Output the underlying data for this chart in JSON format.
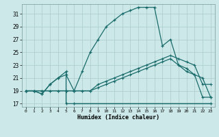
{
  "bg_color": "#cce8e8",
  "grid_color": "#aacccc",
  "line_color": "#1a6b6b",
  "xlabel": "Humidex (Indice chaleur)",
  "xlim": [
    -0.5,
    23.5
  ],
  "ylim": [
    16.5,
    32.5
  ],
  "xticks": [
    0,
    1,
    2,
    3,
    4,
    5,
    6,
    7,
    8,
    9,
    10,
    11,
    12,
    13,
    14,
    15,
    16,
    17,
    18,
    19,
    20,
    21,
    22,
    23
  ],
  "yticks": [
    17,
    19,
    21,
    23,
    25,
    27,
    29,
    31
  ],
  "curve_main_x": [
    0,
    1,
    2,
    3,
    4,
    5,
    6,
    7,
    8,
    9,
    10,
    11,
    12,
    13,
    14,
    15,
    16,
    17,
    18,
    19,
    20,
    21,
    22,
    23
  ],
  "curve_main_y": [
    19,
    19,
    18.5,
    20,
    21,
    21.5,
    19,
    22,
    25,
    27,
    29,
    30,
    31,
    31.5,
    32,
    32,
    32,
    26,
    27,
    23,
    22,
    21.5,
    21,
    18
  ],
  "curve_bot_x": [
    0,
    1,
    2,
    3,
    4,
    5,
    5,
    6,
    23
  ],
  "curve_bot_y": [
    19,
    19,
    18.5,
    20,
    21,
    22,
    17,
    17,
    17
  ],
  "curve_bot_flat_x": [
    6,
    7,
    8,
    9,
    10,
    11,
    12,
    13,
    14,
    15,
    16,
    17,
    18,
    23
  ],
  "curve_bot_flat_y": [
    17,
    17,
    17,
    17,
    17,
    17,
    17,
    17,
    17,
    17,
    17,
    17,
    17,
    17
  ],
  "curve_diag1_x": [
    0,
    1,
    2,
    3,
    4,
    5,
    6,
    7,
    8,
    9,
    10,
    11,
    12,
    13,
    14,
    15,
    16,
    17,
    18,
    19,
    20,
    21,
    22,
    23
  ],
  "curve_diag1_y": [
    19,
    19,
    19,
    19,
    19,
    19,
    19,
    19,
    19,
    19.5,
    20,
    20.5,
    21,
    21.5,
    22,
    22.5,
    23,
    23.5,
    24,
    23,
    22.5,
    21.5,
    18,
    18
  ],
  "curve_diag2_x": [
    0,
    1,
    2,
    3,
    4,
    5,
    6,
    7,
    8,
    9,
    10,
    11,
    12,
    13,
    14,
    15,
    16,
    17,
    18,
    19,
    20,
    21,
    22,
    23
  ],
  "curve_diag2_y": [
    19,
    19,
    19,
    19,
    19,
    19,
    19,
    19,
    19,
    20,
    20.5,
    21,
    21.5,
    22,
    22.5,
    23,
    23.5,
    24,
    24.5,
    24,
    23.5,
    23,
    20,
    20
  ]
}
